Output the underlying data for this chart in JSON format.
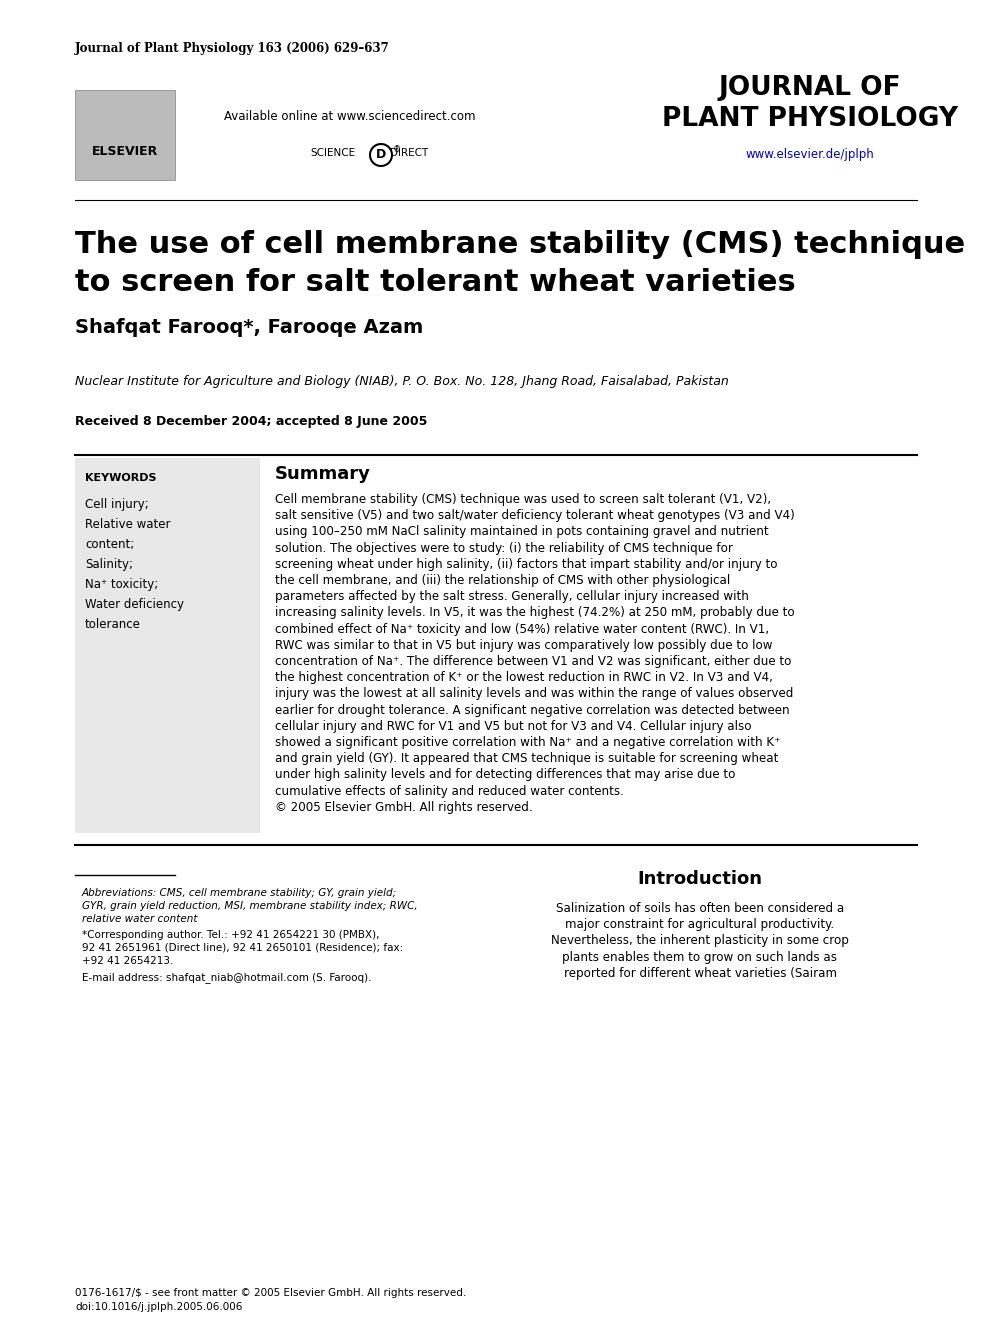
{
  "background_color": "#ffffff",
  "journal_ref": "Journal of Plant Physiology 163 (2006) 629–637",
  "journal_name_line1": "JOURNAL OF",
  "journal_name_line2": "PLANT PHYSIOLOGY",
  "journal_url": "www.elsevier.de/jplph",
  "available_online": "Available online at www.sciencedirect.com",
  "title_line1": "The use of cell membrane stability (CMS) technique",
  "title_line2": "to screen for salt tolerant wheat varieties",
  "authors": "Shafqat Farooq*, Farooqe Azam",
  "affiliation": "Nuclear Institute for Agriculture and Biology (NIAB), P. O. Box. No. 128, Jhang Road, Faisalabad, Pakistan",
  "received": "Received 8 December 2004; accepted 8 June 2005",
  "keywords_title": "KEYWORDS",
  "keywords": [
    "Cell injury;",
    "Relative water",
    "content;",
    "Salinity;",
    "Na⁺ toxicity;",
    "Water deficiency",
    "tolerance"
  ],
  "summary_title": "Summary",
  "intro_title": "Introduction",
  "abbrev_line1": "Abbreviations: CMS, cell membrane stability; GY, grain yield;",
  "abbrev_line2": "GYR, grain yield reduction, MSI, membrane stability index; RWC,",
  "abbrev_line3": "relative water content",
  "corr_line1": "*Corresponding author. Tel.: +92 41 2654221 30 (PMBX),",
  "corr_line2": "92 41 2651961 (Direct line), 92 41 2650101 (Residence); fax:",
  "corr_line3": "+92 41 2654213.",
  "email_text": "E-mail address: shafqat_niab@hotmail.com (S. Farooq).",
  "footer_line1": "0176-1617/$ - see front matter © 2005 Elsevier GmbH. All rights reserved.",
  "footer_line2": "doi:10.1016/j.jplph.2005.06.006",
  "keyword_box_color": "#e8e8e8",
  "url_color": "#0000cc",
  "summary_lines": [
    "Cell membrane stability (CMS) technique was used to screen salt tolerant (V1, V2),",
    "salt sensitive (V5) and two salt/water deficiency tolerant wheat genotypes (V3 and V4)",
    "using 100–250 mM NaCl salinity maintained in pots containing gravel and nutrient",
    "solution. The objectives were to study: (i) the reliability of CMS technique for",
    "screening wheat under high salinity, (ii) factors that impart stability and/or injury to",
    "the cell membrane, and (iii) the relationship of CMS with other physiological",
    "parameters affected by the salt stress. Generally, cellular injury increased with",
    "increasing salinity levels. In V5, it was the highest (74.2%) at 250 mM, probably due to",
    "combined effect of Na⁺ toxicity and low (54%) relative water content (RWC). In V1,",
    "RWC was similar to that in V5 but injury was comparatively low possibly due to low",
    "concentration of Na⁺. The difference between V1 and V2 was significant, either due to",
    "the highest concentration of K⁺ or the lowest reduction in RWC in V2. In V3 and V4,",
    "injury was the lowest at all salinity levels and was within the range of values observed",
    "earlier for drought tolerance. A significant negative correlation was detected between",
    "cellular injury and RWC for V1 and V5 but not for V3 and V4. Cellular injury also",
    "showed a significant positive correlation with Na⁺ and a negative correlation with K⁺",
    "and grain yield (GY). It appeared that CMS technique is suitable for screening wheat",
    "under high salinity levels and for detecting differences that may arise due to",
    "cumulative effects of salinity and reduced water contents.",
    "© 2005 Elsevier GmbH. All rights reserved."
  ],
  "intro_lines": [
    "Salinization of soils has often been considered a",
    "major constraint for agricultural productivity.",
    "Nevertheless, the inherent plasticity in some crop",
    "plants enables them to grow on such lands as",
    "reported for different wheat varieties (Sairam"
  ]
}
